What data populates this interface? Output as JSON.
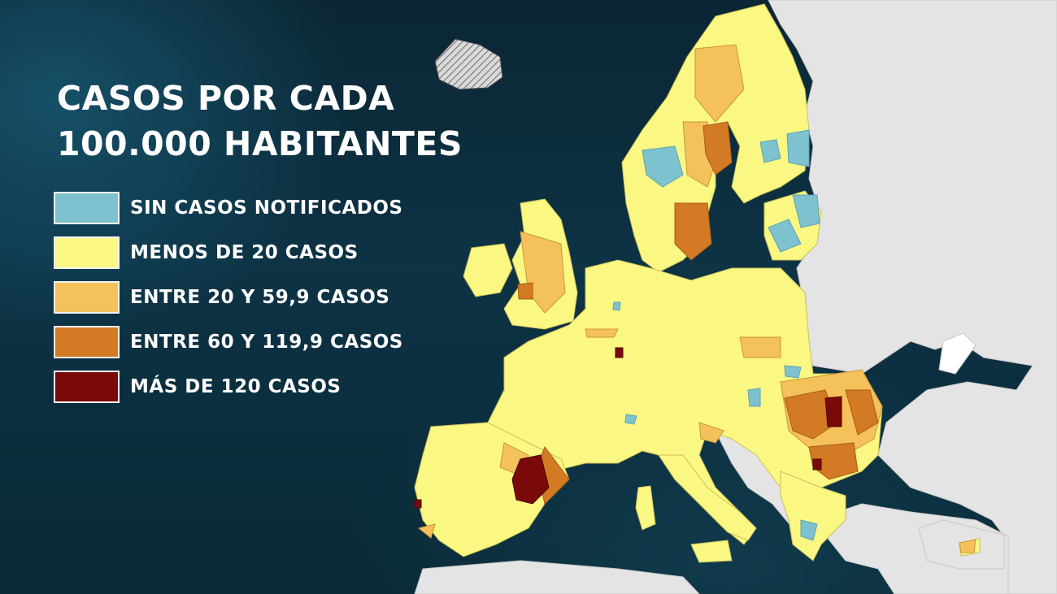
{
  "title": {
    "line1": "CASOS POR CADA",
    "line2": "100.000 HABITANTES"
  },
  "legend": [
    {
      "label": "SIN CASOS NOTIFICADOS",
      "color": "#7ec2cf"
    },
    {
      "label": "MENOS DE 20 CASOS",
      "color": "#fbf783"
    },
    {
      "label": "ENTRE 20 Y 59,9 CASOS",
      "color": "#f4c15a"
    },
    {
      "label": "ENTRE 60 Y 119,9 CASOS",
      "color": "#d27a24"
    },
    {
      "label": "MÁS DE 120 CASOS",
      "color": "#7a0a0a"
    }
  ],
  "colors": {
    "sea": "#0d3345",
    "no_data_land": "#e4e4e4",
    "region_border": "#c9c25a"
  }
}
